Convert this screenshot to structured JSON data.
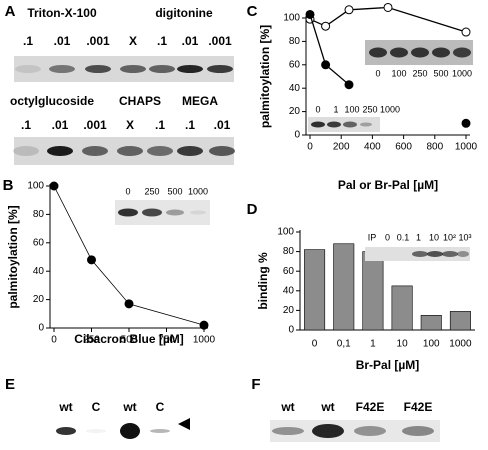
{
  "panels": {
    "a": {
      "label": "A",
      "row1_headers": [
        "Triton-X-100",
        "digitonine"
      ],
      "row1_lanes": [
        ".1",
        ".01",
        ".001",
        "X",
        ".1",
        ".01",
        ".001"
      ],
      "row2_headers": [
        "octylglucoside",
        "CHAPS",
        "MEGA"
      ],
      "row2_lanes": [
        ".1",
        ".01",
        ".001",
        "X",
        ".1",
        ".1",
        ".01"
      ]
    },
    "e": {
      "label": "E",
      "lanes": [
        "wt",
        "C",
        "wt",
        "C"
      ]
    },
    "f": {
      "label": "F",
      "lanes": [
        "wt",
        "wt",
        "F42E",
        "F42E"
      ]
    }
  },
  "chart_data": [
    {
      "type": "line",
      "panel_label": "B",
      "x_label": "Cibacron Blue [µM]",
      "y_label": "palmitoylation [%]",
      "x": [
        0,
        250,
        500,
        1000
      ],
      "series": [
        {
          "color": "#000000",
          "values": [
            100,
            48,
            17,
            2
          ]
        }
      ],
      "xlim": [
        0,
        1000
      ],
      "xticks": [
        0,
        250,
        500,
        750,
        1000
      ],
      "ylim": [
        0,
        100
      ],
      "yticks": [
        0,
        20,
        40,
        60,
        80,
        100
      ],
      "inset_lanes": [
        "0",
        "250",
        "500",
        "1000"
      ]
    },
    {
      "type": "line",
      "panel_label": "C",
      "x_label": "Pal or Br-Pal [µM]",
      "y_label": "palmitoylation [%]",
      "x": [
        0,
        100,
        250,
        500,
        1000
      ],
      "series": [
        {
          "color": "#ffffff",
          "values": [
            99,
            93,
            107,
            109,
            88
          ]
        },
        {
          "color": "#000000",
          "values": [
            103,
            60,
            43,
            null,
            10
          ]
        }
      ],
      "xlim": [
        0,
        1000
      ],
      "xticks": [
        0,
        200,
        400,
        600,
        800,
        1000
      ],
      "ylim": [
        0,
        100
      ],
      "yticks": [
        0,
        20,
        40,
        60,
        80,
        100
      ],
      "inset_lanes": [
        "0",
        "100",
        "250",
        "500",
        "1000"
      ],
      "inset2_lanes": [
        "0",
        "1",
        "100",
        "250",
        "1000"
      ]
    },
    {
      "type": "bar",
      "panel_label": "D",
      "x_label": "Br-Pal [µM]",
      "y_label": "binding %",
      "categories": [
        "0",
        "0,1",
        "1",
        "10",
        "100",
        "1000"
      ],
      "values": [
        82,
        88,
        80,
        45,
        15,
        19
      ],
      "color": "#8c8c8c",
      "ylim": [
        0,
        100
      ],
      "yticks": [
        0,
        20,
        40,
        60,
        80,
        100
      ],
      "inset_lanes": [
        "IP",
        "0",
        "0.1",
        "1",
        "10",
        "10²",
        "10³"
      ]
    }
  ]
}
